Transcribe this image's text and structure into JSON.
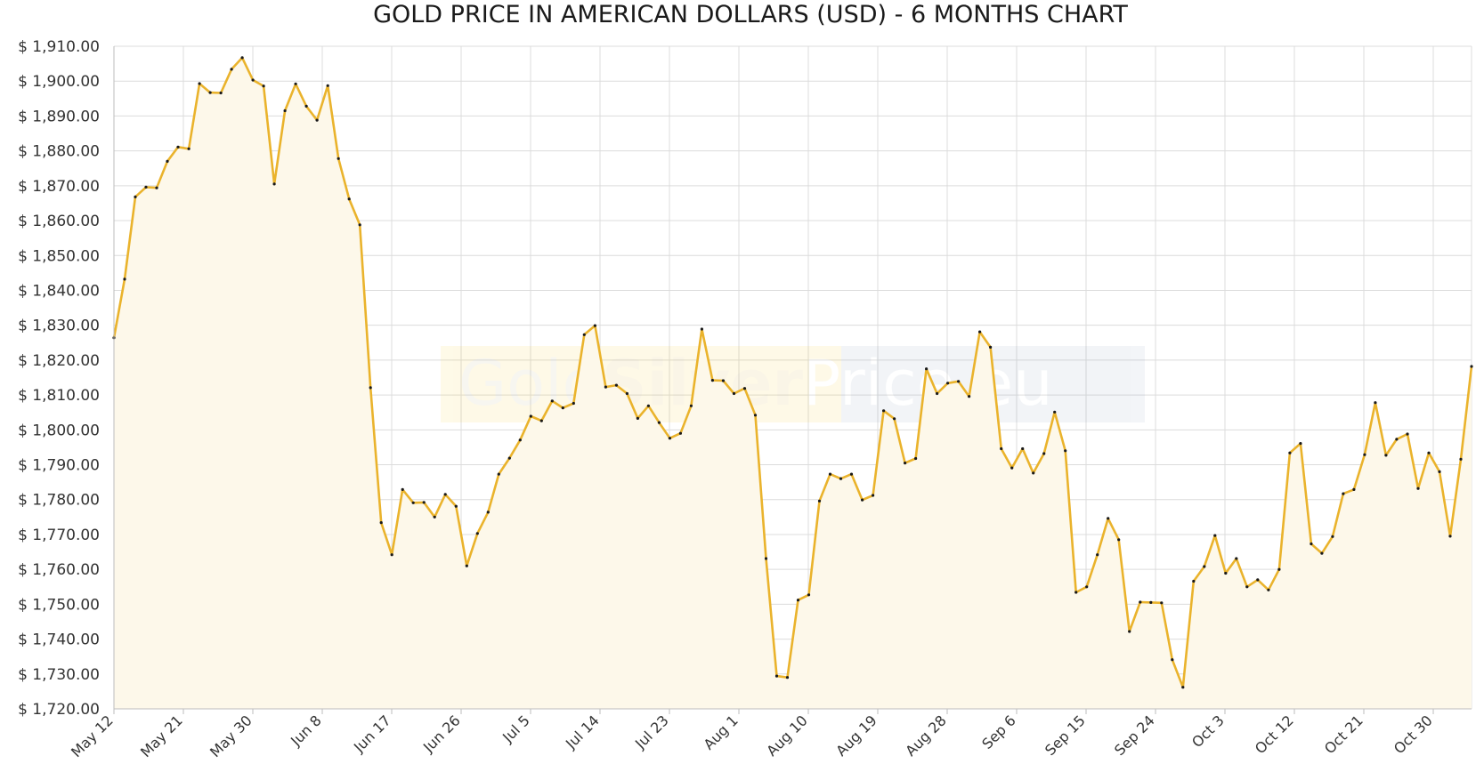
{
  "chart_data": {
    "type": "area",
    "title": "GOLD PRICE IN AMERICAN DOLLARS (USD) - 6 MONTHS CHART",
    "xlabel": "",
    "ylabel": "",
    "ylim": [
      1720,
      1910
    ],
    "y_ticks": [
      "$ 1,720.00",
      "$ 1,730.00",
      "$ 1,740.00",
      "$ 1,750.00",
      "$ 1,760.00",
      "$ 1,770.00",
      "$ 1,780.00",
      "$ 1,790.00",
      "$ 1,800.00",
      "$ 1,810.00",
      "$ 1,820.00",
      "$ 1,830.00",
      "$ 1,840.00",
      "$ 1,850.00",
      "$ 1,860.00",
      "$ 1,870.00",
      "$ 1,880.00",
      "$ 1,890.00",
      "$ 1,900.00",
      "$ 1,910.00"
    ],
    "x_tick_labels": [
      "May 12",
      "May 21",
      "May 30",
      "Jun 8",
      "Jun 17",
      "Jun 26",
      "Jul 5",
      "Jul 14",
      "Jul 23",
      "Aug 1",
      "Aug 10",
      "Aug 19",
      "Aug 28",
      "Sep 6",
      "Sep 15",
      "Sep 24",
      "Oct 3",
      "Oct 12",
      "Oct 21",
      "Oct 30"
    ],
    "grid": true,
    "legend": "none",
    "colors": {
      "line": "#eab32c",
      "fill": "#fdf8ea",
      "marker": "#1a1a1a",
      "grid": "#dcdcdc",
      "axis": "#bdbdbd"
    },
    "series": [
      {
        "values": [
          1826.4,
          1843.2,
          1866.8,
          1869.6,
          1869.4,
          1877.0,
          1881.1,
          1880.6,
          1899.3,
          1896.7,
          1896.6,
          1903.4,
          1906.7,
          1900.3,
          1898.6,
          1870.5,
          1891.5,
          1899.2,
          1892.8,
          1888.8,
          1898.7,
          1877.8,
          1866.2,
          1858.8,
          1812.1,
          1773.4,
          1764.2,
          1782.9,
          1779.1,
          1779.2,
          1775.0,
          1781.5,
          1778.1,
          1761.0,
          1770.3,
          1776.4,
          1787.3,
          1791.9,
          1797.1,
          1803.9,
          1802.6,
          1808.3,
          1806.3,
          1807.6,
          1827.3,
          1829.9,
          1812.3,
          1812.8,
          1810.4,
          1803.3,
          1806.9,
          1802.1,
          1797.6,
          1799.0,
          1806.9,
          1828.9,
          1814.2,
          1814.1,
          1810.4,
          1811.9,
          1804.2,
          1763.1,
          1729.4,
          1729.0,
          1751.2,
          1752.7,
          1779.6,
          1787.3,
          1786.0,
          1787.3,
          1779.9,
          1781.2,
          1805.5,
          1803.2,
          1790.5,
          1791.8,
          1817.5,
          1810.4,
          1813.4,
          1813.9,
          1809.6,
          1828.1,
          1823.7,
          1794.6,
          1789.1,
          1794.6,
          1787.6,
          1793.2,
          1805.1,
          1794.0,
          1753.4,
          1755.0,
          1764.2,
          1774.6,
          1768.5,
          1742.2,
          1750.6,
          1750.5,
          1750.4,
          1734.1,
          1726.2,
          1756.6,
          1760.8,
          1769.7,
          1758.9,
          1763.1,
          1755.0,
          1757.0,
          1754.1,
          1760.0,
          1793.4,
          1796.1,
          1767.3,
          1764.6,
          1769.4,
          1781.7,
          1782.9,
          1792.9,
          1807.8,
          1792.7,
          1797.3,
          1798.8,
          1783.2,
          1793.4,
          1788.0,
          1769.5,
          1791.6,
          1818.2
        ]
      }
    ]
  },
  "watermark": {
    "brand_gold": "Gold",
    "brand_silver": "Silver",
    "brand_price": "Price.eu"
  }
}
